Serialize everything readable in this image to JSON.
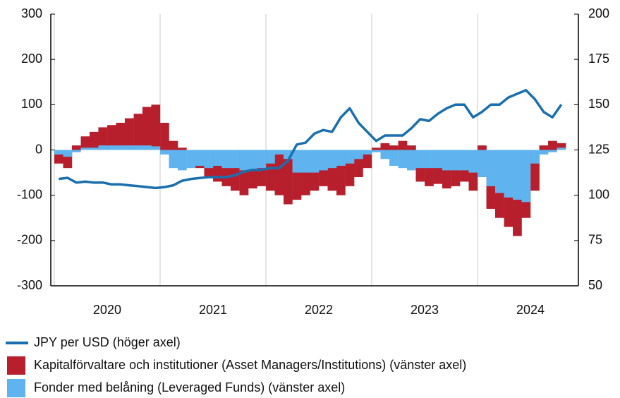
{
  "chart_data": {
    "type": "bar",
    "x": [
      2020.042,
      2020.125,
      2020.208,
      2020.292,
      2020.375,
      2020.458,
      2020.542,
      2020.625,
      2020.708,
      2020.792,
      2020.875,
      2020.958,
      2021.042,
      2021.125,
      2021.208,
      2021.292,
      2021.375,
      2021.458,
      2021.542,
      2021.625,
      2021.708,
      2021.792,
      2021.875,
      2021.958,
      2022.042,
      2022.125,
      2022.208,
      2022.292,
      2022.375,
      2022.458,
      2022.542,
      2022.625,
      2022.708,
      2022.792,
      2022.875,
      2022.958,
      2023.042,
      2023.125,
      2023.208,
      2023.292,
      2023.375,
      2023.458,
      2023.542,
      2023.625,
      2023.708,
      2023.792,
      2023.875,
      2023.958,
      2024.042,
      2024.125,
      2024.208,
      2024.292,
      2024.375,
      2024.458,
      2024.542,
      2024.625,
      2024.708,
      2024.792
    ],
    "xlim": [
      2019.967,
      2024.953
    ],
    "xticks": [
      2020,
      2021,
      2022,
      2023,
      2024
    ],
    "ylim": [
      -300,
      300
    ],
    "yticks": [
      -300,
      -200,
      -100,
      0,
      100,
      200,
      300
    ],
    "y2lim": [
      50,
      200
    ],
    "y2ticks": [
      50,
      75,
      100,
      125,
      150,
      175,
      200
    ],
    "grid": true,
    "series": [
      {
        "name": "JPY per USD (höger axel)",
        "color": "#1a6fae",
        "type": "line",
        "axis": "y2",
        "values": [
          109,
          109.6,
          107,
          107.5,
          107,
          107,
          106,
          106,
          105.5,
          105,
          104.5,
          104,
          104.5,
          105.5,
          108,
          109,
          109.5,
          110,
          110,
          110,
          111,
          113,
          114,
          114,
          115,
          115,
          119,
          128,
          129,
          134,
          136,
          135,
          143,
          148,
          140,
          135,
          130,
          133,
          133,
          133,
          137,
          142,
          141,
          145,
          148,
          150,
          150,
          143,
          146,
          150,
          150,
          154,
          156,
          158,
          153,
          146,
          143,
          150
        ]
      },
      {
        "name": "Kapitalförvaltare och institutioner (Asset Managers/Institutions) (vänster axel)",
        "color": "#b81f2d",
        "type": "bar",
        "values": [
          -30,
          -40,
          10,
          30,
          40,
          50,
          55,
          60,
          70,
          80,
          95,
          100,
          60,
          20,
          5,
          -5,
          -40,
          -60,
          -70,
          -80,
          -90,
          -100,
          -85,
          -80,
          -90,
          -100,
          -120,
          -110,
          -100,
          -90,
          -80,
          -90,
          -100,
          -80,
          -60,
          -40,
          5,
          15,
          10,
          20,
          10,
          -70,
          -80,
          -75,
          -85,
          -80,
          -70,
          -90,
          10,
          -130,
          -150,
          -170,
          -190,
          -150,
          -90,
          10,
          20,
          15
        ]
      },
      {
        "name": "Fonder med belåning (Leveraged Funds) (vänster axel)",
        "color": "#5fb4ef",
        "type": "bar",
        "values": [
          -10,
          -15,
          -5,
          5,
          5,
          10,
          10,
          10,
          10,
          10,
          10,
          8,
          -10,
          -40,
          -45,
          -40,
          -35,
          -40,
          -35,
          -40,
          -40,
          -45,
          -45,
          -40,
          -30,
          -10,
          -20,
          -50,
          -50,
          -50,
          -45,
          -40,
          -35,
          -30,
          -20,
          -10,
          -5,
          -20,
          -35,
          -40,
          -45,
          -40,
          -40,
          -40,
          -45,
          -45,
          -45,
          -50,
          -60,
          -80,
          -95,
          -105,
          -110,
          -115,
          -30,
          -10,
          -5,
          5
        ]
      }
    ]
  }
}
